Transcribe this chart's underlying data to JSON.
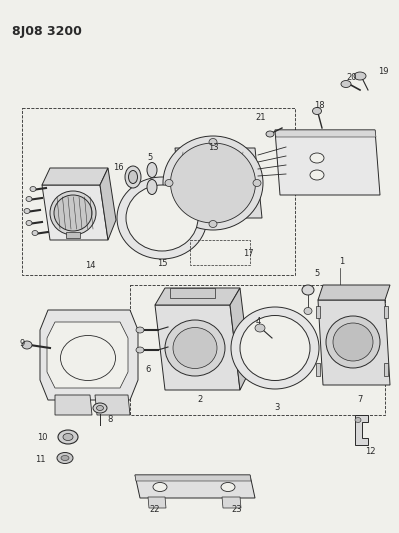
{
  "title": "8J08 3200",
  "background_color": "#f0f0eb",
  "line_color": "#2a2a2a",
  "figsize": [
    3.99,
    5.33
  ],
  "dpi": 100,
  "title_fontsize": 9,
  "label_fontsize": 6
}
